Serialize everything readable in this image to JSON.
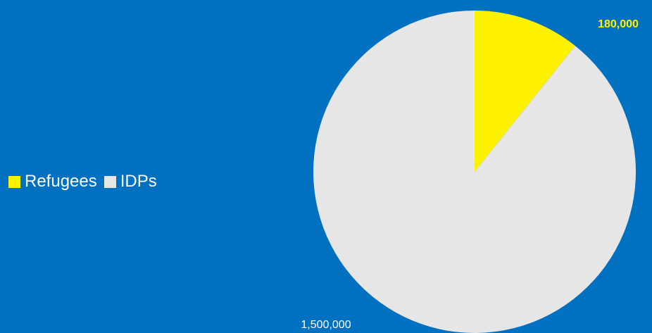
{
  "chart_data": {
    "type": "pie",
    "series": [
      {
        "name": "Refugees",
        "value": 180000,
        "color": "#FFF200"
      },
      {
        "name": "IDPs",
        "value": 1500000,
        "color": "#E6E6E6"
      }
    ],
    "data_labels": [
      {
        "text": "180,000",
        "series": "Refugees",
        "color": "#FFF200",
        "bold": true
      },
      {
        "text": "1,500,000",
        "series": "IDPs",
        "color": "#FFFFFF",
        "bold": false
      }
    ],
    "legend": {
      "position": "left"
    },
    "background": "#0070C0"
  }
}
